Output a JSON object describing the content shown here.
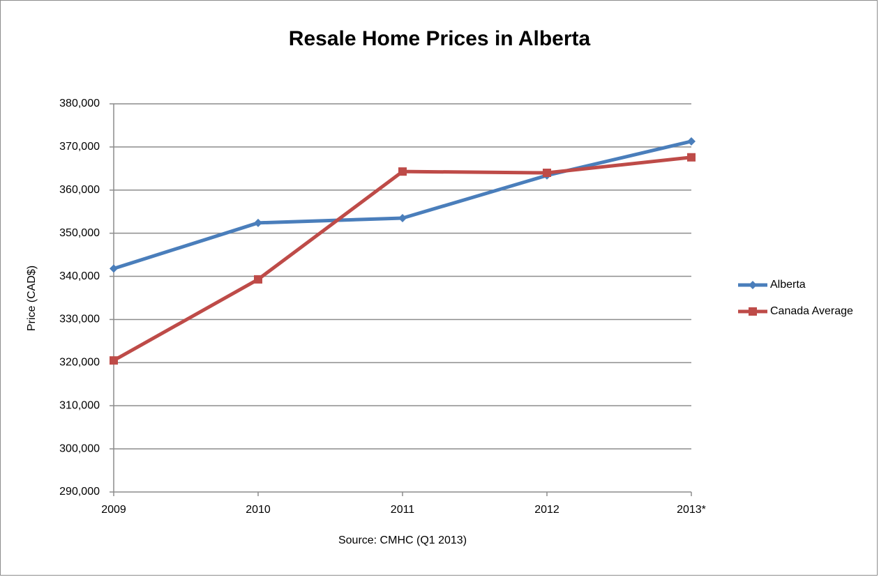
{
  "chart_data": {
    "type": "line",
    "title": "Resale Home Prices in Alberta",
    "y_label": "Price (CAD$)",
    "note": "Source: CMHC (Q1 2013)",
    "categories": [
      "2009",
      "2010",
      "2011",
      "2012",
      "2013*"
    ],
    "series": [
      {
        "name": "Alberta",
        "color": "#4a7ebb",
        "marker": "diamond",
        "values": [
          341800,
          352400,
          353500,
          363400,
          371300
        ]
      },
      {
        "name": "Canada Average",
        "color": "#be4b48",
        "marker": "square",
        "values": [
          320500,
          339300,
          364300,
          364000,
          367600
        ]
      }
    ],
    "ylim": [
      290000,
      380000
    ],
    "yticks": [
      {
        "value": 290000,
        "label": "290,000"
      },
      {
        "value": 300000,
        "label": "300,000"
      },
      {
        "value": 310000,
        "label": "310,000"
      },
      {
        "value": 320000,
        "label": "320,000"
      },
      {
        "value": 330000,
        "label": "330,000"
      },
      {
        "value": 340000,
        "label": "340,000"
      },
      {
        "value": 350000,
        "label": "350,000"
      },
      {
        "value": 360000,
        "label": "360,000"
      },
      {
        "value": 370000,
        "label": "370,000"
      },
      {
        "value": 380000,
        "label": "380,000"
      }
    ],
    "grid": true,
    "legend": "right"
  }
}
